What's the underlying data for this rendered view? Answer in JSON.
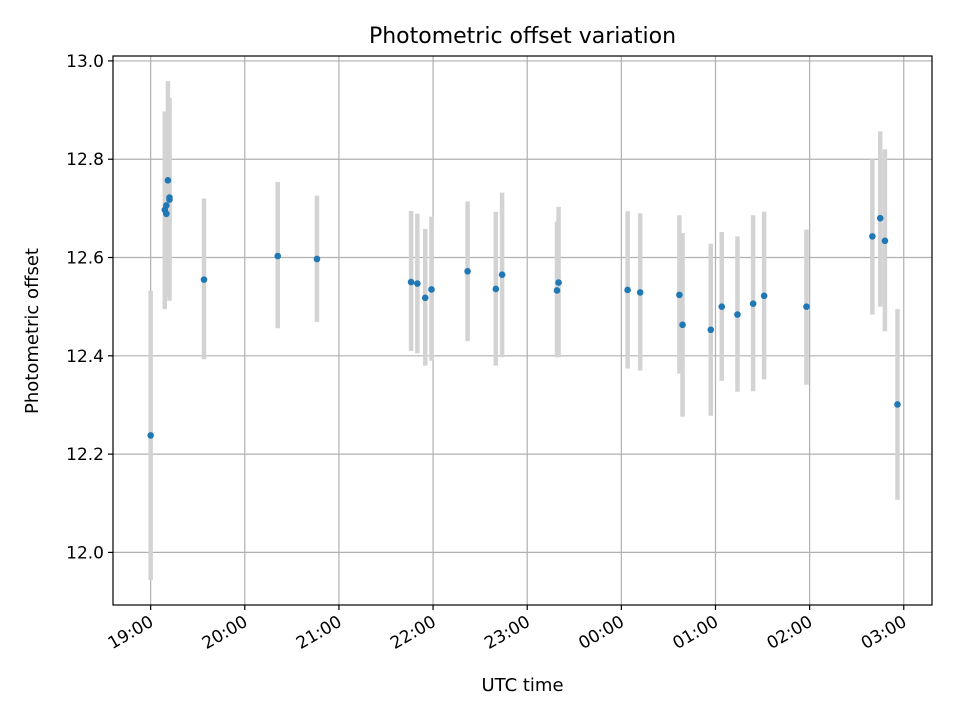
{
  "chart_data": {
    "type": "scatter",
    "title": "Photometric offset variation",
    "xlabel": "UTC time",
    "ylabel": "Photometric offset",
    "x_unit": "UTC time (hh:mm), run starting 19:00 and crossing midnight",
    "xlim": [
      "18:36",
      "03:18"
    ],
    "ylim": [
      11.893,
      13.01
    ],
    "xticks": [
      "19:00",
      "20:00",
      "21:00",
      "22:00",
      "23:00",
      "00:00",
      "01:00",
      "02:00",
      "03:00"
    ],
    "yticks": [
      "12.0",
      "12.2",
      "12.4",
      "12.6",
      "12.8",
      "13.0"
    ],
    "grid": true,
    "legend": "none",
    "colors": {
      "marker": "#1f77b4",
      "errorbar": "#d3d3d3",
      "grid": "#b0b0b0",
      "axes": "#000000"
    },
    "points": [
      {
        "x": "19:00",
        "y": 12.238,
        "err_lo": 11.944,
        "err_hi": 12.532
      },
      {
        "x": "19:09",
        "y": 12.697,
        "err_lo": 12.495,
        "err_hi": 12.897
      },
      {
        "x": "19:10",
        "y": 12.689,
        "err_lo": 12.52,
        "err_hi": 12.86
      },
      {
        "x": "19:10",
        "y": 12.706,
        "err_lo": 12.55,
        "err_hi": 12.87
      },
      {
        "x": "19:11",
        "y": 12.757,
        "err_lo": 12.555,
        "err_hi": 12.959
      },
      {
        "x": "19:12",
        "y": 12.722,
        "err_lo": 12.512,
        "err_hi": 12.925
      },
      {
        "x": "19:12",
        "y": 12.718,
        "err_lo": 12.54,
        "err_hi": 12.9
      },
      {
        "x": "19:34",
        "y": 12.555,
        "err_lo": 12.393,
        "err_hi": 12.72
      },
      {
        "x": "20:21",
        "y": 12.603,
        "err_lo": 12.456,
        "err_hi": 12.754
      },
      {
        "x": "20:46",
        "y": 12.597,
        "err_lo": 12.469,
        "err_hi": 12.726
      },
      {
        "x": "21:46",
        "y": 12.55,
        "err_lo": 12.41,
        "err_hi": 12.695
      },
      {
        "x": "21:50",
        "y": 12.547,
        "err_lo": 12.405,
        "err_hi": 12.689
      },
      {
        "x": "21:55",
        "y": 12.518,
        "err_lo": 12.38,
        "err_hi": 12.658
      },
      {
        "x": "21:59",
        "y": 12.535,
        "err_lo": 12.39,
        "err_hi": 12.683
      },
      {
        "x": "22:22",
        "y": 12.572,
        "err_lo": 12.43,
        "err_hi": 12.714
      },
      {
        "x": "22:40",
        "y": 12.536,
        "err_lo": 12.38,
        "err_hi": 12.693
      },
      {
        "x": "22:44",
        "y": 12.565,
        "err_lo": 12.397,
        "err_hi": 12.732
      },
      {
        "x": "23:19",
        "y": 12.533,
        "err_lo": 12.397,
        "err_hi": 12.673
      },
      {
        "x": "23:20",
        "y": 12.549,
        "err_lo": 12.397,
        "err_hi": 12.703
      },
      {
        "x": "00:04",
        "y": 12.534,
        "err_lo": 12.374,
        "err_hi": 12.694
      },
      {
        "x": "00:12",
        "y": 12.529,
        "err_lo": 12.37,
        "err_hi": 12.69
      },
      {
        "x": "00:37",
        "y": 12.524,
        "err_lo": 12.364,
        "err_hi": 12.686
      },
      {
        "x": "00:39",
        "y": 12.463,
        "err_lo": 12.276,
        "err_hi": 12.65
      },
      {
        "x": "00:57",
        "y": 12.453,
        "err_lo": 12.278,
        "err_hi": 12.628
      },
      {
        "x": "01:04",
        "y": 12.5,
        "err_lo": 12.349,
        "err_hi": 12.652
      },
      {
        "x": "01:14",
        "y": 12.484,
        "err_lo": 12.327,
        "err_hi": 12.643
      },
      {
        "x": "01:24",
        "y": 12.506,
        "err_lo": 12.328,
        "err_hi": 12.686
      },
      {
        "x": "01:31",
        "y": 12.522,
        "err_lo": 12.352,
        "err_hi": 12.693
      },
      {
        "x": "01:58",
        "y": 12.5,
        "err_lo": 12.341,
        "err_hi": 12.657
      },
      {
        "x": "02:40",
        "y": 12.643,
        "err_lo": 12.484,
        "err_hi": 12.8
      },
      {
        "x": "02:45",
        "y": 12.68,
        "err_lo": 12.5,
        "err_hi": 12.857
      },
      {
        "x": "02:48",
        "y": 12.634,
        "err_lo": 12.45,
        "err_hi": 12.82
      },
      {
        "x": "02:56",
        "y": 12.301,
        "err_lo": 12.107,
        "err_hi": 12.495
      }
    ]
  }
}
